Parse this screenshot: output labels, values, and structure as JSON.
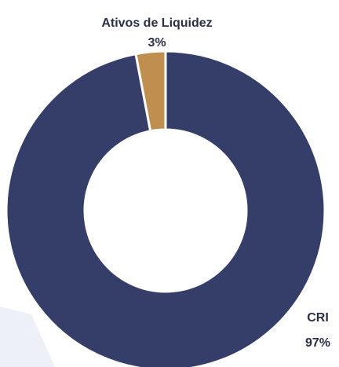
{
  "chart_data": {
    "type": "donut",
    "categories": [
      "CRI",
      "Ativos de Liquidez"
    ],
    "values": [
      97,
      3
    ],
    "value_labels": [
      "97%",
      "3%"
    ],
    "colors": [
      "#343e69",
      "#c08f4f"
    ]
  }
}
